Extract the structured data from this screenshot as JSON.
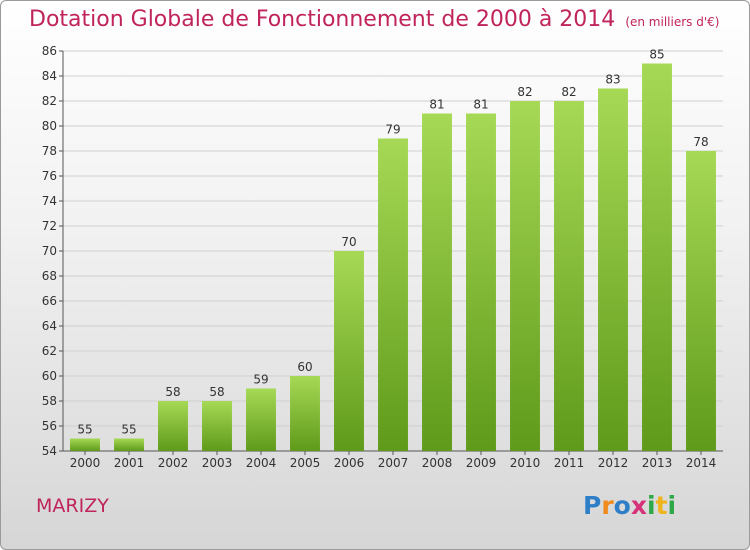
{
  "title": "Dotation Globale de Fonctionnement de 2000 à 2014",
  "subtitle": "(en milliers d'€)",
  "commune": "MARIZY",
  "logo": {
    "text": "Proxiti"
  },
  "colors": {
    "bar": "#7dba2f",
    "bar_light": "#9fd34f",
    "bar_dark": "#5f9a1a",
    "title": "#c0245c"
  },
  "chart_data": {
    "type": "bar",
    "title": "Dotation Globale de Fonctionnement de 2000 à 2014",
    "subtitle": "(en milliers d'€)",
    "categories": [
      "2000",
      "2001",
      "2002",
      "2003",
      "2004",
      "2005",
      "2006",
      "2007",
      "2008",
      "2009",
      "2010",
      "2011",
      "2012",
      "2013",
      "2014"
    ],
    "values": [
      55,
      55,
      58,
      58,
      59,
      60,
      70,
      79,
      81,
      81,
      82,
      82,
      83,
      85,
      78
    ],
    "ylim": [
      54,
      86
    ],
    "yticks": [
      54,
      56,
      58,
      60,
      62,
      64,
      66,
      68,
      70,
      72,
      74,
      76,
      78,
      80,
      82,
      84,
      86
    ],
    "grid": true,
    "legend": "none"
  }
}
